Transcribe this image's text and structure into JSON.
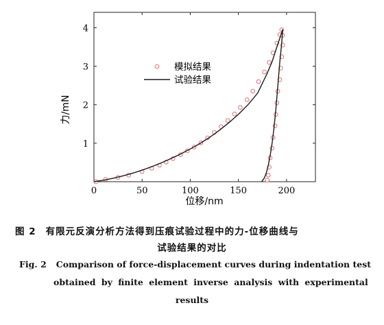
{
  "chart_data": {
    "type": "line",
    "xlabel": "位移/nm",
    "ylabel": "力/mN",
    "xlim": [
      0,
      230
    ],
    "ylim": [
      0,
      4.4
    ],
    "xticks": [
      "0",
      "50",
      "100",
      "150",
      "200"
    ],
    "yticks": [
      "1",
      "2",
      "3",
      "4"
    ],
    "legend_position": "top-center",
    "series": [
      {
        "name": "模拟结果",
        "style": "markers-open-circle",
        "color": "#e07070",
        "x": [
          2,
          12,
          25,
          36,
          50,
          60,
          68,
          75,
          82,
          90,
          97,
          104,
          111,
          118,
          125,
          132,
          139,
          146,
          152,
          159,
          165,
          171,
          177,
          182,
          186,
          190,
          193,
          195,
          196,
          196,
          195,
          194,
          193,
          191,
          190,
          189,
          188,
          186,
          185,
          183,
          182,
          181,
          180
        ],
        "y": [
          0.0,
          0.06,
          0.11,
          0.17,
          0.26,
          0.35,
          0.43,
          0.51,
          0.6,
          0.7,
          0.8,
          0.9,
          1.01,
          1.14,
          1.28,
          1.43,
          1.59,
          1.76,
          1.93,
          2.13,
          2.35,
          2.6,
          2.85,
          3.1,
          3.35,
          3.6,
          3.82,
          3.95,
          3.8,
          3.55,
          3.25,
          2.95,
          2.65,
          2.35,
          2.05,
          1.75,
          1.45,
          1.15,
          0.87,
          0.62,
          0.38,
          0.17,
          0.04
        ]
      },
      {
        "name": "试验结果",
        "style": "line",
        "color": "#1a1a1a",
        "x": [
          0,
          10,
          20,
          30,
          40,
          50,
          60,
          70,
          80,
          90,
          100,
          110,
          120,
          130,
          140,
          150,
          160,
          170,
          180,
          185,
          190,
          194,
          196,
          195,
          193,
          191,
          189,
          187,
          185,
          183,
          181,
          179,
          177,
          175,
          174
        ],
        "y": [
          0,
          0.04,
          0.09,
          0.15,
          0.22,
          0.3,
          0.39,
          0.49,
          0.6,
          0.72,
          0.85,
          0.99,
          1.15,
          1.33,
          1.53,
          1.75,
          2.0,
          2.3,
          2.82,
          3.12,
          3.5,
          3.8,
          3.96,
          3.6,
          3.1,
          2.5,
          1.9,
          1.4,
          1.0,
          0.68,
          0.42,
          0.23,
          0.1,
          0.03,
          0.0
        ]
      }
    ]
  },
  "caption": {
    "cn_label": "图 2",
    "cn_line1": "有限元反演分析方法得到压痕试验过程中的力-位移曲线与",
    "cn_line2": "试验结果的对比",
    "en_label": "Fig. 2",
    "en_line1": "Comparison of force-displacement curves during indentation test",
    "en_line2": "obtained by finite element inverse analysis with experimental",
    "en_line3": "results"
  }
}
